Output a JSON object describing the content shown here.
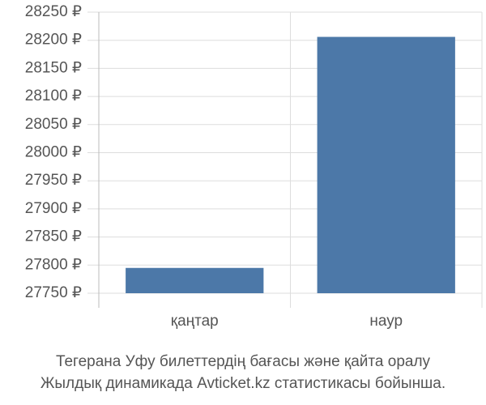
{
  "chart_data": {
    "type": "bar",
    "categories": [
      "қаңтар",
      "наур"
    ],
    "values": [
      27795,
      28206
    ],
    "color": "#4c78a8",
    "ylim": [
      27750,
      28250
    ],
    "yticks": [
      {
        "value": 27750,
        "label": "27750 ₽"
      },
      {
        "value": 27800,
        "label": "27800 ₽"
      },
      {
        "value": 27850,
        "label": "27850 ₽"
      },
      {
        "value": 27900,
        "label": "27900 ₽"
      },
      {
        "value": 27950,
        "label": "27950 ₽"
      },
      {
        "value": 28000,
        "label": "28000 ₽"
      },
      {
        "value": 28050,
        "label": "28050 ₽"
      },
      {
        "value": 28100,
        "label": "28100 ₽"
      },
      {
        "value": 28150,
        "label": "28150 ₽"
      },
      {
        "value": 28200,
        "label": "28200 ₽"
      },
      {
        "value": 28250,
        "label": "28250 ₽"
      }
    ],
    "grid": true,
    "caption": [
      "Тегерана Уфу билеттердің бағасы және қайта оралу",
      "Жылдық динамикада Avticket.kz статистикасы бойынша."
    ]
  }
}
